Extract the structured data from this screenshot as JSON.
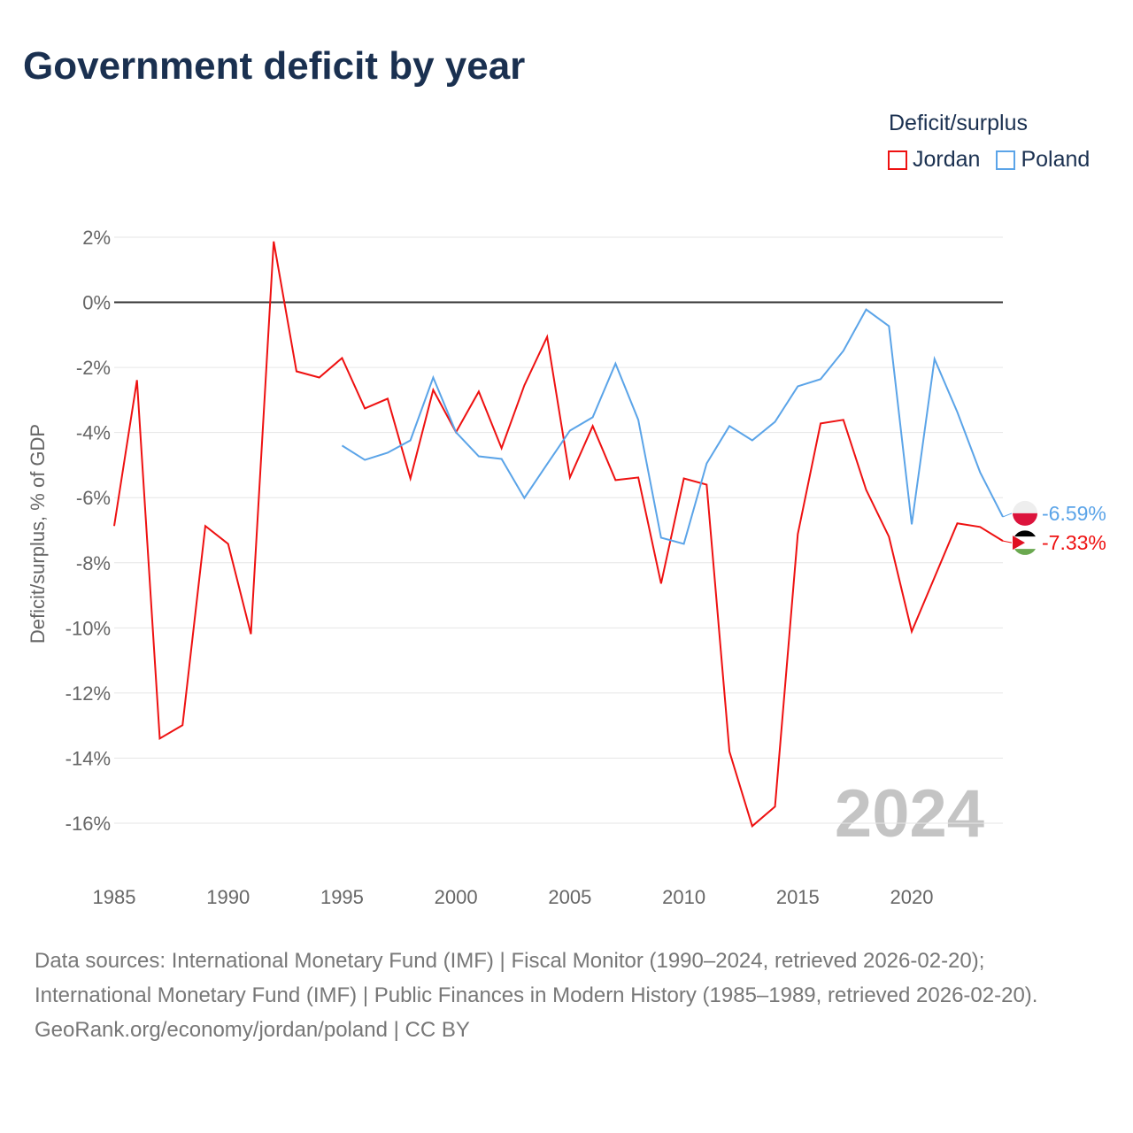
{
  "chart_data": {
    "type": "line",
    "title": "Government deficit by year",
    "ylabel": "Deficit/surplus, % of GDP",
    "xlabel": "",
    "ylim": [
      -16,
      2
    ],
    "xlim": [
      1985,
      2024
    ],
    "y_ticks": [
      2,
      0,
      -2,
      -4,
      -6,
      -8,
      -10,
      -12,
      -14,
      -16
    ],
    "y_tick_labels": [
      "2%",
      "0%",
      "-2%",
      "-4%",
      "-6%",
      "-8%",
      "-10%",
      "-12%",
      "-14%",
      "-16%"
    ],
    "x_ticks": [
      1985,
      1990,
      1995,
      2000,
      2005,
      2010,
      2015,
      2020
    ],
    "x_tick_labels": [
      "1985",
      "1990",
      "1995",
      "2000",
      "2005",
      "2010",
      "2015",
      "2020"
    ],
    "grid": true,
    "legend_title": "Deficit/surplus",
    "legend_position": "top-right",
    "year_watermark": "2024",
    "series": [
      {
        "name": "Jordan",
        "color": "#ee1111",
        "end_label": "-7.33%",
        "x": [
          1985,
          1986,
          1987,
          1988,
          1989,
          1990,
          1991,
          1992,
          1993,
          1994,
          1995,
          1996,
          1997,
          1998,
          1999,
          2000,
          2001,
          2002,
          2003,
          2004,
          2005,
          2006,
          2007,
          2008,
          2009,
          2010,
          2011,
          2012,
          2013,
          2014,
          2015,
          2016,
          2017,
          2018,
          2019,
          2020,
          2021,
          2022,
          2023,
          2024
        ],
        "values": [
          -6.87,
          -2.39,
          -13.4,
          -12.99,
          -6.87,
          -7.42,
          -10.19,
          1.87,
          -2.12,
          -2.31,
          -1.71,
          -3.26,
          -2.96,
          -5.41,
          -2.69,
          -3.99,
          -2.74,
          -4.48,
          -2.55,
          -1.06,
          -5.38,
          -3.8,
          -5.46,
          -5.38,
          -8.64,
          -5.41,
          -5.6,
          -13.8,
          -16.09,
          -15.49,
          -7.12,
          -3.72,
          -3.61,
          -5.76,
          -7.2,
          -10.11,
          -8.45,
          -6.79,
          -6.9,
          -7.33
        ]
      },
      {
        "name": "Poland",
        "color": "#5ba4e8",
        "end_label": "-6.59%",
        "x": [
          1995,
          1996,
          1997,
          1998,
          1999,
          2000,
          2001,
          2002,
          2003,
          2004,
          2005,
          2006,
          2007,
          2008,
          2009,
          2010,
          2011,
          2012,
          2013,
          2014,
          2015,
          2016,
          2017,
          2018,
          2019,
          2020,
          2021,
          2022,
          2023,
          2024
        ],
        "values": [
          -4.4,
          -4.84,
          -4.62,
          -4.24,
          -2.31,
          -3.99,
          -4.73,
          -4.81,
          -6.01,
          -4.97,
          -3.94,
          -3.53,
          -1.88,
          -3.61,
          -7.23,
          -7.42,
          -4.95,
          -3.8,
          -4.24,
          -3.67,
          -2.58,
          -2.36,
          -1.49,
          -0.22,
          -0.73,
          -6.82,
          -1.74,
          -3.37,
          -5.22,
          -6.59
        ]
      }
    ]
  },
  "footer": {
    "sources": "Data sources: International Monetary Fund (IMF) | Fiscal Monitor (1990–2024, retrieved 2026-02-20); International Monetary Fund (IMF) | Public Finances in Modern History (1985–1989, retrieved 2026-02-20).",
    "credit": "GeoRank.org/economy/jordan/poland | CC BY"
  }
}
